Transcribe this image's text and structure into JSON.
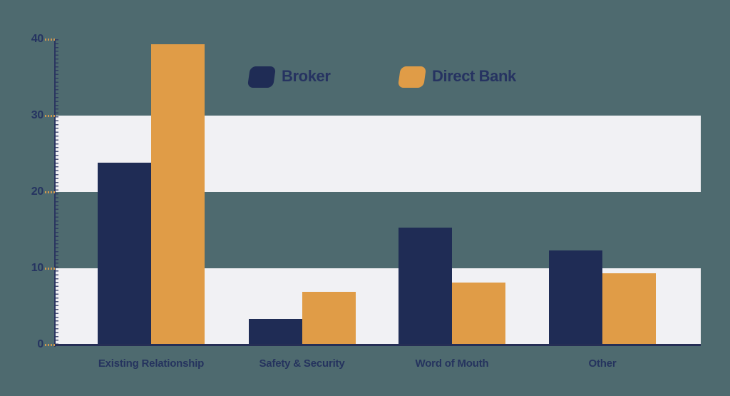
{
  "colors": {
    "background": "#4e6a6f",
    "band": "#f1f1f4",
    "broker_navy": "#1f2c55",
    "direct_bank_orange": "#e09c47",
    "axis_navy": "#2a3560",
    "baseline_navy": "#252e55",
    "tick_orange": "#cf9750",
    "label_text": "#25335e"
  },
  "chart_data": {
    "type": "bar",
    "title": "",
    "xlabel": "",
    "ylabel": "",
    "categories": [
      "Existing Relationship",
      "Safety & Security",
      "Word of Mouth",
      "Other"
    ],
    "series": [
      {
        "name": "Broker",
        "color": "#1f2c55",
        "values": [
          23.8,
          3.4,
          15.3,
          12.3
        ]
      },
      {
        "name": "Direct Bank",
        "color": "#e09c47",
        "values": [
          39.3,
          6.9,
          8.1,
          9.3
        ]
      }
    ],
    "ylim": [
      0,
      40
    ],
    "yticks": [
      0,
      10,
      20,
      30,
      40
    ],
    "ytick_labels": [
      "0",
      "10",
      "20",
      "30",
      "40"
    ],
    "shaded_bands": [
      [
        0,
        10
      ],
      [
        20,
        30
      ]
    ],
    "grid": false,
    "legend_position": "top-center"
  }
}
